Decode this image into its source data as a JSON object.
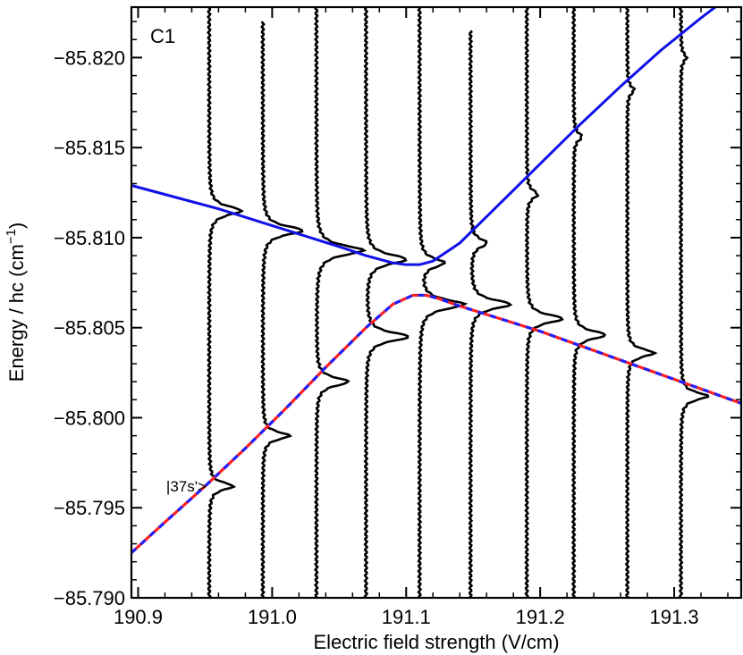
{
  "chart_data": {
    "type": "line",
    "panel_label": "C1",
    "xlabel": "Electric field strength (V/cm)",
    "ylabel": "Energy / hc (cm",
    "ylabel_sup": "−1",
    "ylabel_close": ")",
    "xlim": [
      190.895,
      191.35
    ],
    "ylim": [
      -85.8228,
      -85.79
    ],
    "xticks": [
      190.9,
      191.0,
      191.1,
      191.2,
      191.3
    ],
    "xtick_labels": [
      "190.9",
      "191.0",
      "191.1",
      "191.2",
      "191.3"
    ],
    "yticks": [
      -85.79,
      -85.795,
      -85.8,
      -85.805,
      -85.81,
      -85.815,
      -85.82
    ],
    "ytick_labels": [
      "−85.790",
      "−85.795",
      "−85.800",
      "−85.805",
      "−85.810",
      "−85.815",
      "−85.820"
    ],
    "state_label": "|37s'>",
    "state_label_x": 190.955,
    "state_label_y": -85.7962,
    "colors": {
      "upper": "#ff2020",
      "upper_dash": "#2020ff",
      "lower": "#1010e8",
      "spectra": "#000000"
    },
    "series": [
      {
        "name": "",
        "style": "red-blue-dashed",
        "x": [
          190.895,
          190.92,
          190.95,
          190.98,
          191.01,
          191.04,
          191.07,
          191.09,
          191.105,
          191.115,
          191.125,
          191.14,
          191.17,
          191.2,
          191.23,
          191.26,
          191.29,
          191.32,
          191.35
        ],
        "y": [
          -85.7925,
          -85.7942,
          -85.7962,
          -85.7983,
          -85.8005,
          -85.8028,
          -85.805,
          -85.8063,
          -85.8068,
          -85.8068,
          -85.8066,
          -85.8062,
          -85.8055,
          -85.8048,
          -85.804,
          -85.8032,
          -85.8024,
          -85.8016,
          -85.8008
        ]
      },
      {
        "name": "",
        "style": "blue-solid",
        "x": [
          190.895,
          190.93,
          190.96,
          190.99,
          191.02,
          191.05,
          191.07,
          191.09,
          191.1,
          191.11,
          191.12,
          191.14,
          191.17,
          191.2,
          191.23,
          191.26,
          191.29,
          191.32,
          191.35
        ],
        "y": [
          -85.8129,
          -85.8122,
          -85.8116,
          -85.8109,
          -85.8102,
          -85.8095,
          -85.809,
          -85.8086,
          -85.8085,
          -85.8085,
          -85.8087,
          -85.8097,
          -85.8119,
          -85.8141,
          -85.8163,
          -85.8184,
          -85.8204,
          -85.8222,
          -85.8239
        ]
      }
    ],
    "spectra": {
      "x_offsets": [
        190.953,
        190.993,
        191.033,
        191.07,
        191.11,
        191.148,
        191.19,
        191.225,
        191.265,
        191.305
      ],
      "peaks": [
        [
          [
            -85.7962,
            0.018,
            0.00025
          ],
          [
            -85.8115,
            0.024,
            0.0003
          ]
        ],
        [
          [
            -85.799,
            0.02,
            0.00025
          ],
          [
            -85.8104,
            0.03,
            0.0003
          ]
        ],
        [
          [
            -85.802,
            0.024,
            0.00028
          ],
          [
            -85.8093,
            0.035,
            0.00033
          ]
        ],
        [
          [
            -85.8045,
            0.032,
            0.0003
          ],
          [
            -85.8088,
            0.03,
            0.00033
          ]
        ],
        [
          [
            -85.8063,
            0.033,
            0.00032
          ],
          [
            -85.8086,
            0.018,
            0.0003
          ]
        ],
        [
          [
            -85.8063,
            0.03,
            0.0003
          ],
          [
            -85.8097,
            0.012,
            0.0003
          ]
        ],
        [
          [
            -85.8055,
            0.027,
            0.00028
          ],
          [
            -85.8124,
            0.008,
            0.00028
          ]
        ],
        [
          [
            -85.8046,
            0.024,
            0.00027
          ],
          [
            -85.8156,
            0.006,
            0.00027
          ]
        ],
        [
          [
            -85.8036,
            0.02,
            0.00026
          ],
          [
            -85.8182,
            0.005,
            0.00026
          ]
        ],
        [
          [
            -85.8012,
            0.02,
            0.00026
          ],
          [
            -85.82,
            0.004,
            0.00026
          ]
        ]
      ],
      "y_ranges": [
        [
          -85.79,
          -85.8228
        ],
        [
          -85.79,
          -85.822
        ],
        [
          -85.79,
          -85.8228
        ],
        [
          -85.79,
          -85.8228
        ],
        [
          -85.79,
          -85.8228
        ],
        [
          -85.79,
          -85.8215
        ],
        [
          -85.79,
          -85.8228
        ],
        [
          -85.79,
          -85.8228
        ],
        [
          -85.79,
          -85.8228
        ],
        [
          -85.79,
          -85.8228
        ]
      ]
    }
  }
}
